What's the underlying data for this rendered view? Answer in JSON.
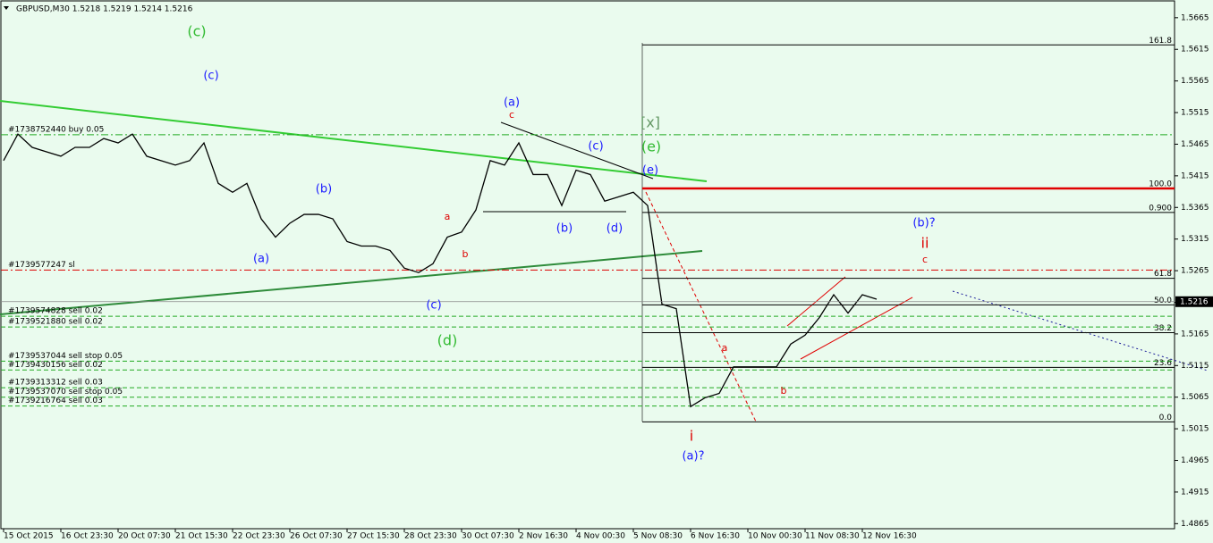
{
  "chart_data": {
    "type": "line",
    "title": "GBPUSD,M30  1.5218 1.5219 1.5214 1.5216",
    "categories": [
      "15 Oct 2015",
      null,
      null,
      null,
      "16 Oct 23:30",
      null,
      null,
      null,
      "20 Oct 07:30",
      null,
      null,
      null,
      "21 Oct 15:30",
      null,
      null,
      null,
      "22 Oct 23:30",
      null,
      null,
      null,
      "26 Oct 07:30",
      null,
      null,
      null,
      "27 Oct 15:30",
      null,
      null,
      null,
      "28 Oct 23:30",
      null,
      null,
      null,
      "30 Oct 07:30",
      null,
      null,
      null,
      "2 Nov 16:30",
      null,
      null,
      null,
      "4 Nov 00:30",
      null,
      null,
      null,
      "5 Nov 08:30",
      null,
      null,
      null,
      "6 Nov 16:30",
      null,
      null,
      null,
      "10 Nov 00:30",
      null,
      null,
      null,
      "11 Nov 08:30",
      null,
      null,
      null,
      "12 Nov 16:30",
      null
    ],
    "values": [
      1.5439,
      1.5481,
      1.546,
      1.5453,
      1.5446,
      1.546,
      1.546,
      1.5474,
      1.5467,
      1.5481,
      1.5446,
      1.5439,
      1.5432,
      1.5439,
      1.5467,
      1.5403,
      1.5389,
      1.5403,
      1.5347,
      1.5318,
      1.534,
      1.5354,
      1.5354,
      1.5347,
      1.5311,
      1.5304,
      1.5304,
      1.5297,
      1.5269,
      1.5262,
      1.5276,
      1.5318,
      1.5326,
      1.5361,
      1.5439,
      1.5432,
      1.5467,
      1.5417,
      1.5417,
      1.5368,
      1.5424,
      1.5417,
      1.5375,
      1.5382,
      1.5389,
      1.5368,
      1.5212,
      1.5205,
      1.505,
      1.5064,
      1.5071,
      1.5113,
      1.5113,
      1.5113,
      1.5113,
      1.5149,
      1.5163,
      1.5191,
      1.5227,
      1.5198,
      1.5227,
      1.522
    ],
    "color": "#000000",
    "ylim": [
      1.4857,
      1.5693
    ],
    "yticks": [
      1.5665,
      1.5615,
      1.5565,
      1.5515,
      1.5465,
      1.5415,
      1.5365,
      1.5315,
      1.5265,
      1.5215,
      1.5165,
      1.5115,
      1.5065,
      1.5015,
      1.4965,
      1.4915,
      1.4865
    ],
    "last_price": 1.5216,
    "fib_levels": [
      {
        "level": 161.8,
        "price": 1.5622
      },
      {
        "level": {
          "value": 100,
          "label": "100.0"
        },
        "price": 1.5395
      },
      {
        "level": {
          "value": 0.9,
          "label": "0.900"
        },
        "price": 1.5357
      },
      {
        "level": 61.8,
        "price": 1.5253
      },
      {
        "level": {
          "value": 50,
          "label": "50.0"
        },
        "price": 1.5211
      },
      {
        "level": 38.2,
        "price": 1.5167
      },
      {
        "level": 23.6,
        "price": 1.5112
      },
      {
        "level": {
          "value": 0,
          "label": "0.0"
        },
        "price": 1.5026
      }
    ],
    "order_lines": [
      {
        "label": "#1738752440 buy 0.05",
        "price": 1.548,
        "color": "#22aa22"
      },
      {
        "label": "#1739577247 sl",
        "price": 1.5266,
        "color": "#dd0000"
      },
      {
        "label": "#1739574828 sell 0.02",
        "price": 1.5193,
        "color": "#22aa22"
      },
      {
        "label": "#1739521880 sell 0.02",
        "price": 1.5176,
        "color": "#22aa22"
      },
      {
        "label": "#1739537044 sell stop 0.05",
        "price": 1.5122,
        "color": "#22aa22"
      },
      {
        "label": "#1739430156 sell 0.02",
        "price": 1.5108,
        "color": "#22aa22"
      },
      {
        "label": "#1739313312 sell 0.03",
        "price": 1.508,
        "color": "#22aa22"
      },
      {
        "label": "#1739537070 sell stop 0.05",
        "price": 1.5065,
        "color": "#22aa22"
      },
      {
        "label": "#1739216764 sell 0.03",
        "price": 1.5051,
        "color": "#22aa22"
      }
    ],
    "wave_labels": [
      {
        "text": "(c)",
        "color": "#33bb33"
      },
      {
        "text": "(c)",
        "color": "#1a1aff"
      },
      {
        "text": "(a)",
        "color": "#1a1aff"
      },
      {
        "text": "(b)",
        "color": "#1a1aff"
      },
      {
        "text": "a",
        "color": "#dd0000"
      },
      {
        "text": "b",
        "color": "#dd0000"
      },
      {
        "text": "(c)",
        "color": "#1a1aff"
      },
      {
        "text": "(d)",
        "color": "#33bb33"
      },
      {
        "text": "(a)",
        "color": "#1a1aff"
      },
      {
        "text": "c",
        "color": "#dd0000"
      },
      {
        "text": "(c)",
        "color": "#1a1aff"
      },
      {
        "text": "(b)",
        "color": "#1a1aff"
      },
      {
        "text": "(d)",
        "color": "#1a1aff"
      },
      {
        "text": "[x]",
        "color": "#669966"
      },
      {
        "text": "(e)",
        "color": "#33bb33"
      },
      {
        "text": "(e)",
        "color": "#1a1aff"
      },
      {
        "text": "a",
        "color": "#dd0000"
      },
      {
        "text": "b",
        "color": "#dd0000"
      },
      {
        "text": "i",
        "color": "#dd0000"
      },
      {
        "text": "(a)?",
        "color": "#1a1aff"
      },
      {
        "text": "(b)?",
        "color": "#1a1aff"
      },
      {
        "text": "ii",
        "color": "#dd0000"
      },
      {
        "text": "c",
        "color": "#dd0000"
      }
    ]
  }
}
